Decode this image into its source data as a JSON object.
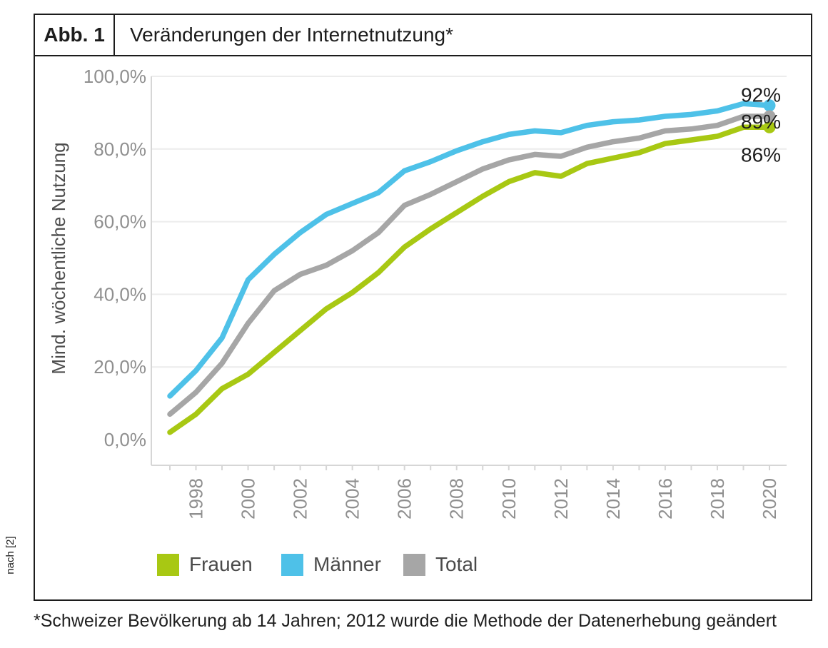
{
  "figure": {
    "label": "Abb. 1",
    "title": "Veränderungen der Internetnutzung*",
    "source": "nach [2]",
    "footnote": "*Schweizer Bevölkerung ab 14 Jahren; 2012 wurde die Methode der Datenerhebung geändert"
  },
  "chart_data": {
    "type": "line",
    "title": "Veränderungen der Internetnutzung",
    "xlabel": "",
    "ylabel": "Mind. wöchentliche Nutzung",
    "ylim": [
      0,
      100
    ],
    "grid": true,
    "legend_position": "bottom",
    "y_ticks": [
      {
        "label": "100,0%",
        "value": 100
      },
      {
        "label": "80,0%",
        "value": 80
      },
      {
        "label": "60,0%",
        "value": 60
      },
      {
        "label": "40,0%",
        "value": 40
      },
      {
        "label": "20,0%",
        "value": 20
      },
      {
        "label": "0,0%",
        "value": 0
      }
    ],
    "x_ticks": [
      1998,
      2000,
      2002,
      2004,
      2006,
      2008,
      2010,
      2012,
      2014,
      2016,
      2018,
      2020
    ],
    "x": [
      1997,
      1998,
      1999,
      2000,
      2001,
      2002,
      2003,
      2004,
      2005,
      2006,
      2007,
      2008,
      2009,
      2010,
      2011,
      2012,
      2013,
      2014,
      2015,
      2016,
      2017,
      2018,
      2019,
      2020
    ],
    "series": [
      {
        "name": "Frauen",
        "color": "#a8c813",
        "end_label": "86%",
        "values": [
          2,
          7,
          14,
          18,
          24,
          30,
          36,
          40.5,
          46,
          53,
          58,
          62.5,
          67,
          71,
          73.5,
          72.5,
          76,
          77.5,
          79,
          81.5,
          82.5,
          83.5,
          86,
          86
        ]
      },
      {
        "name": "Männer",
        "color": "#4ec1e8",
        "end_label": "92%",
        "values": [
          12,
          19,
          28,
          44,
          51,
          57,
          62,
          65,
          68,
          74,
          76.5,
          79.5,
          82,
          84,
          85,
          84.5,
          86.5,
          87.5,
          88,
          89,
          89.5,
          90.5,
          92.5,
          92
        ]
      },
      {
        "name": "Total",
        "color": "#a6a6a6",
        "end_label": "89%",
        "values": [
          7,
          13,
          21,
          32,
          41,
          45.5,
          48,
          52,
          57,
          64.5,
          67.5,
          71,
          74.5,
          77,
          78.5,
          78,
          80.5,
          82,
          83,
          85,
          85.5,
          86.5,
          89,
          89
        ]
      }
    ]
  }
}
